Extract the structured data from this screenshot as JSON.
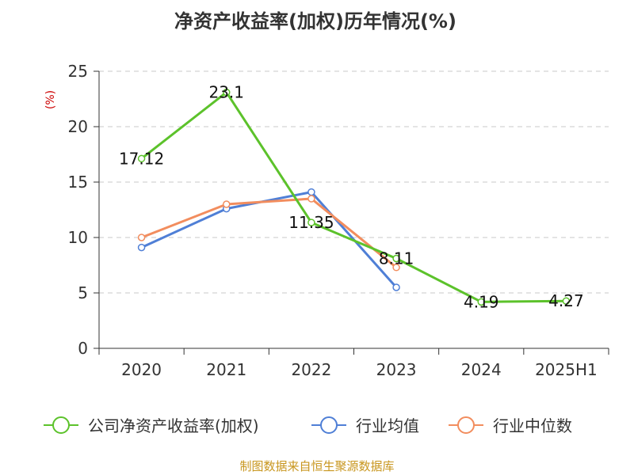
{
  "chart_data": {
    "type": "line",
    "title": "净资产收益率(加权)历年情况(%)",
    "ylabel": "(%)",
    "categories": [
      "2020",
      "2021",
      "2022",
      "2023",
      "2024",
      "2025H1"
    ],
    "ylim": [
      0,
      25
    ],
    "yticks": [
      0,
      5,
      10,
      15,
      20,
      25
    ],
    "grid": true,
    "legend_position": "bottom",
    "series": [
      {
        "name": "公司净资产收益率(加权)",
        "color": "#5cc22b",
        "values": [
          17.12,
          23.1,
          11.35,
          8.11,
          4.19,
          4.27
        ],
        "labels": [
          "17.12",
          "23.1",
          "11.35",
          "8.11",
          "4.19",
          "4.27"
        ]
      },
      {
        "name": "行业均值",
        "color": "#4f7fd6",
        "values": [
          9.1,
          12.6,
          14.1,
          5.5,
          null,
          null
        ]
      },
      {
        "name": "行业中位数",
        "color": "#f28d5e",
        "values": [
          10.0,
          13.0,
          13.5,
          7.3,
          null,
          null
        ]
      }
    ],
    "source": "制图数据来自恒生聚源数据库"
  }
}
